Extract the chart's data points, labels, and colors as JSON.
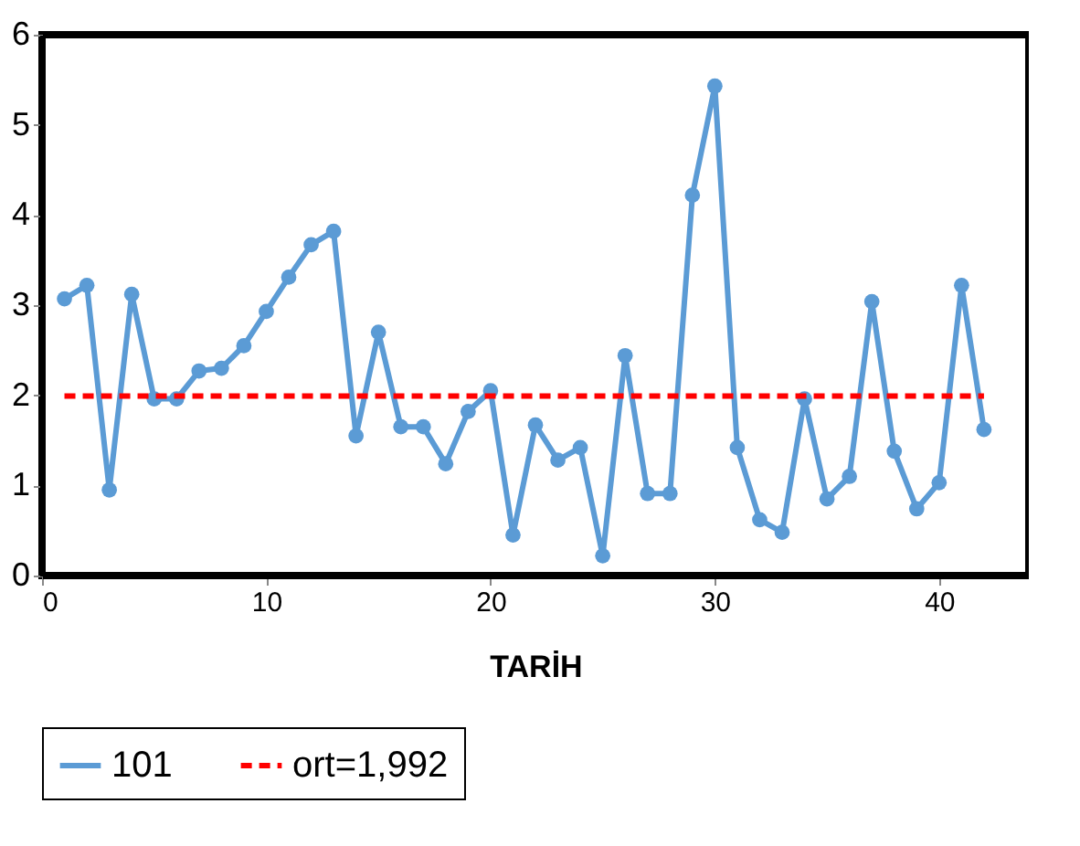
{
  "chart_data": {
    "type": "line",
    "xlabel": "TARİH",
    "x": [
      1,
      2,
      3,
      4,
      5,
      6,
      7,
      8,
      9,
      10,
      11,
      12,
      13,
      14,
      15,
      16,
      17,
      18,
      19,
      20,
      21,
      22,
      23,
      24,
      25,
      26,
      27,
      28,
      29,
      30,
      31,
      32,
      33,
      34,
      35,
      36,
      37,
      38,
      39,
      40,
      41,
      42
    ],
    "series": [
      {
        "name": "101",
        "color": "#5b9bd5",
        "marker": "circle",
        "line_style": "solid",
        "values": [
          3.07,
          3.22,
          0.95,
          3.12,
          1.96,
          1.96,
          2.27,
          2.3,
          2.55,
          2.93,
          3.31,
          3.67,
          3.82,
          1.55,
          2.7,
          1.65,
          1.65,
          1.24,
          1.82,
          2.05,
          0.45,
          1.67,
          1.28,
          1.42,
          0.22,
          2.44,
          0.91,
          0.91,
          4.22,
          5.43,
          1.42,
          0.62,
          0.48,
          1.96,
          0.85,
          1.1,
          3.04,
          1.38,
          0.74,
          1.03,
          3.22,
          1.62
        ]
      },
      {
        "name": "ort=1,992",
        "color": "#ff0000",
        "marker": "none",
        "line_style": "dashed",
        "x": [
          1,
          42
        ],
        "values": [
          1.992,
          1.992
        ]
      }
    ],
    "xlim": [
      0,
      44
    ],
    "xticks": [
      0,
      10,
      20,
      30,
      40
    ],
    "ylim": [
      0,
      6
    ],
    "yticks": [
      0,
      1,
      2,
      3,
      4,
      5,
      6
    ],
    "grid": false,
    "legend": "bottom"
  }
}
